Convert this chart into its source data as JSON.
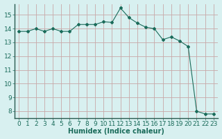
{
  "x": [
    0,
    1,
    2,
    3,
    4,
    5,
    6,
    7,
    8,
    9,
    10,
    11,
    12,
    13,
    14,
    15,
    16,
    17,
    18,
    19,
    20,
    21,
    22,
    23
  ],
  "y": [
    13.8,
    13.8,
    14.0,
    13.8,
    14.0,
    13.8,
    13.8,
    14.3,
    14.3,
    14.3,
    14.5,
    14.45,
    15.5,
    14.8,
    14.4,
    14.1,
    14.0,
    13.2,
    13.4,
    13.1,
    12.7,
    8.0,
    7.8,
    7.8
  ],
  "line_color": "#1a6b5a",
  "marker": "D",
  "marker_size": 2,
  "bg_color": "#d8f0f0",
  "plot_bg_color": "#d8f0f0",
  "grid_color": "#c8a8a8",
  "xlabel": "Humidex (Indice chaleur)",
  "xlim": [
    -0.5,
    23.5
  ],
  "ylim": [
    7.5,
    15.8
  ],
  "yticks": [
    8,
    9,
    10,
    11,
    12,
    13,
    14,
    15
  ],
  "xticks": [
    0,
    1,
    2,
    3,
    4,
    5,
    6,
    7,
    8,
    9,
    10,
    11,
    12,
    13,
    14,
    15,
    16,
    17,
    18,
    19,
    20,
    21,
    22,
    23
  ],
  "figsize": [
    3.2,
    2.0
  ],
  "dpi": 100,
  "spine_color": "#2a5a50",
  "tick_color": "#1a6b5a",
  "label_fontsize": 6.5,
  "xlabel_fontsize": 7
}
